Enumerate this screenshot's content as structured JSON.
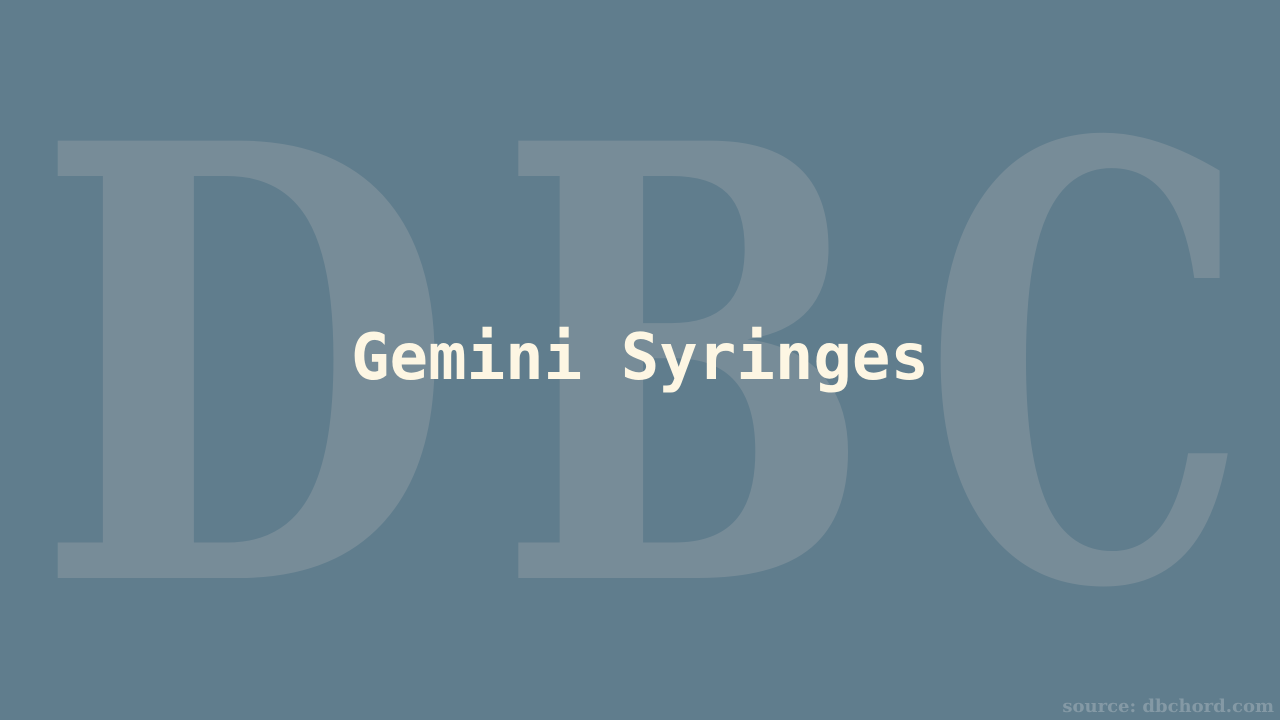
{
  "watermark": {
    "letters": [
      "D",
      "B",
      "C"
    ]
  },
  "slide": {
    "title": "Gemini Syringes"
  },
  "footer": {
    "source": "source: dbchord.com"
  },
  "colors": {
    "background": "#607d8d",
    "watermark": "#778c98",
    "title": "#fdf6e3",
    "source": "#8499a5"
  }
}
